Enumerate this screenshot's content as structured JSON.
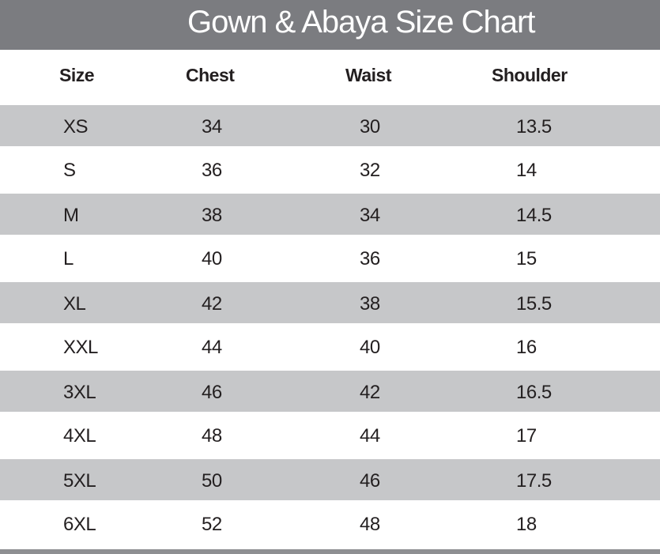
{
  "title": "Gown & Abaya Size Chart",
  "colors": {
    "title_band": "#7b7c80",
    "stripe": "#c6c7c9",
    "text": "#231f20"
  },
  "columns": [
    "Size",
    "Chest",
    "Waist",
    "Shoulder"
  ],
  "rows": [
    [
      "XS",
      "34",
      "30",
      "13.5"
    ],
    [
      "S",
      "36",
      "32",
      "14"
    ],
    [
      "M",
      "38",
      "34",
      "14.5"
    ],
    [
      "L",
      "40",
      "36",
      "15"
    ],
    [
      "XL",
      "42",
      "38",
      "15.5"
    ],
    [
      "XXL",
      "44",
      "40",
      "16"
    ],
    [
      "3XL",
      "46",
      "42",
      "16.5"
    ],
    [
      "4XL",
      "48",
      "44",
      "17"
    ],
    [
      "5XL",
      "50",
      "46",
      "17.5"
    ],
    [
      "6XL",
      "52",
      "48",
      "18"
    ]
  ]
}
